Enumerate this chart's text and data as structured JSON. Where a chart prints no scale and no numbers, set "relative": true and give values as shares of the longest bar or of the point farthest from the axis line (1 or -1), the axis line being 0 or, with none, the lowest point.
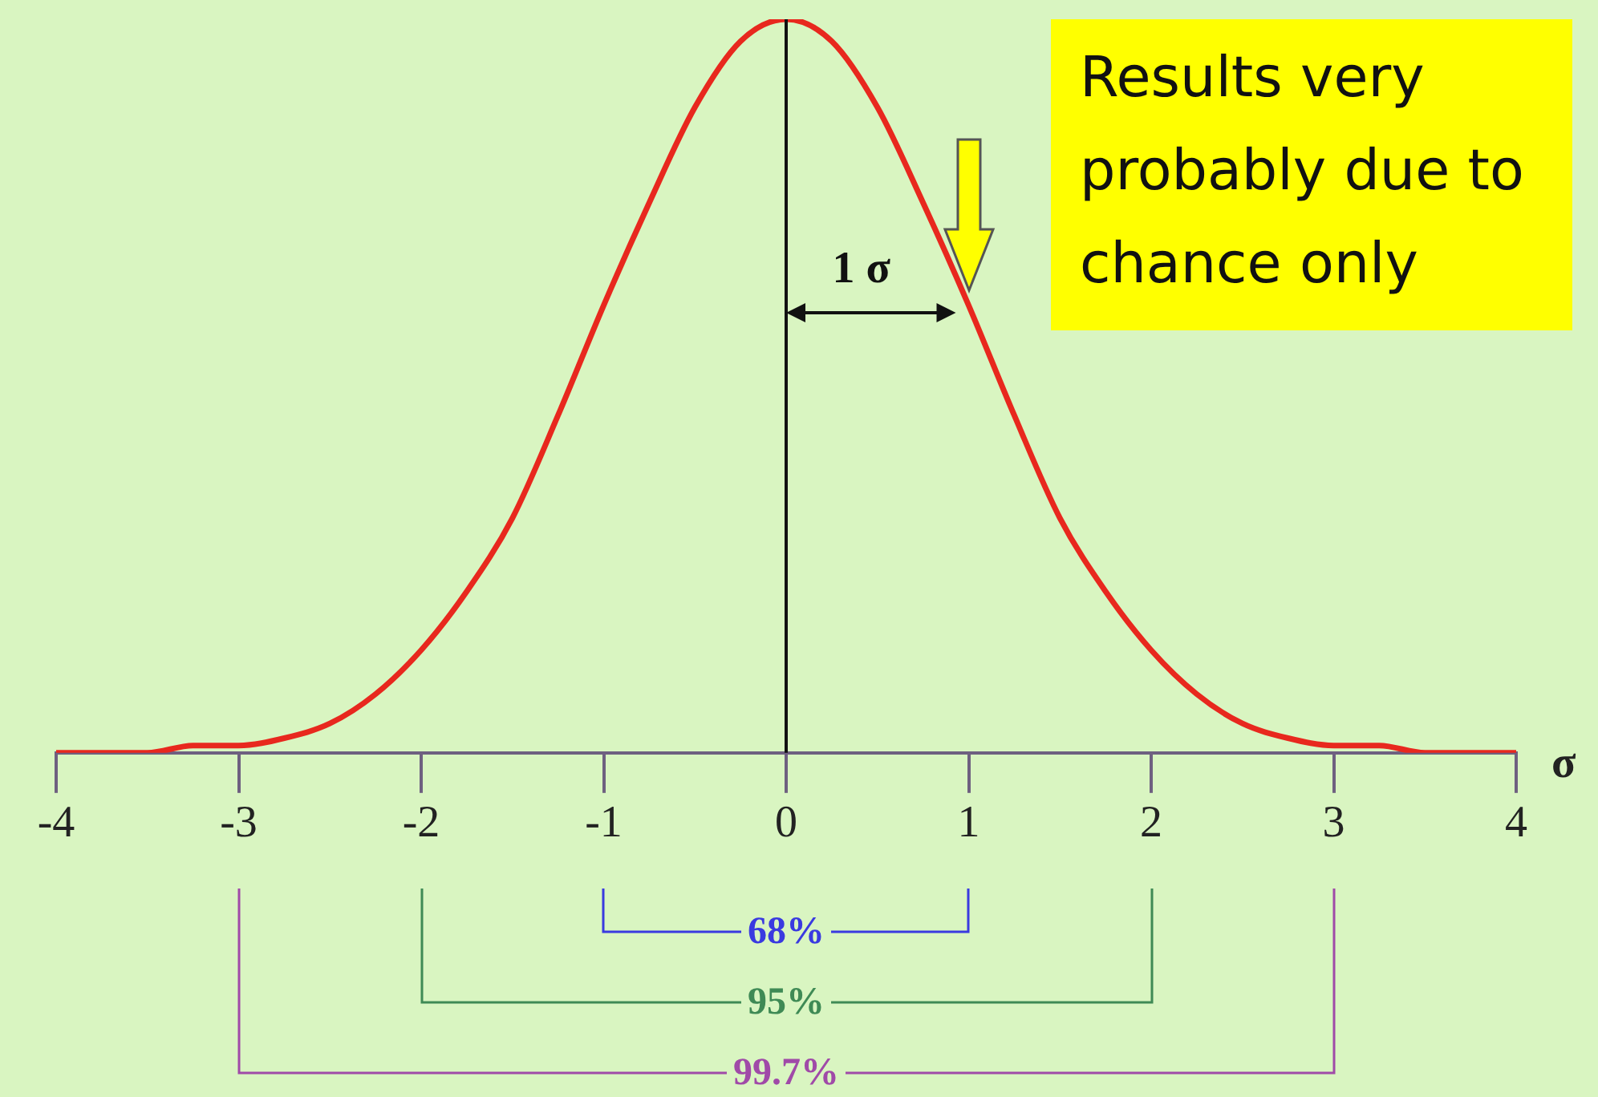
{
  "chart_data": {
    "type": "line",
    "relative": true,
    "xlabel": "σ",
    "xlim": [
      -4,
      4
    ],
    "xticks": [
      -4,
      -3,
      -2,
      -1,
      0,
      1,
      2,
      3,
      4
    ],
    "marker": "none",
    "legend": false,
    "grid": false,
    "x": [
      -4,
      -3.75,
      -3.5,
      -3.25,
      -3,
      -2.75,
      -2.5,
      -2.25,
      -2,
      -1.75,
      -1.5,
      -1.25,
      -1,
      -0.75,
      -0.5,
      -0.25,
      0,
      0.25,
      0.5,
      0.75,
      1,
      1.25,
      1.5,
      1.75,
      2,
      2.25,
      2.5,
      2.75,
      3,
      3.25,
      3.5,
      3.75,
      4
    ],
    "series": [
      {
        "color": "#e8281e",
        "values": [
          0,
          0,
          0,
          0.01,
          0.01,
          0.02,
          0.04,
          0.08,
          0.14,
          0.22,
          0.32,
          0.46,
          0.61,
          0.75,
          0.88,
          0.97,
          1,
          0.97,
          0.88,
          0.75,
          0.61,
          0.46,
          0.32,
          0.22,
          0.14,
          0.08,
          0.04,
          0.02,
          0.01,
          0.01,
          0,
          0,
          0
        ]
      }
    ],
    "ref_lines": [
      {
        "axis": "x",
        "value": 0,
        "color": "#111111"
      }
    ],
    "annotations": [
      {
        "text": "1 σ",
        "x": 1,
        "y": 0.6
      },
      "Results very probably due to chance only",
      "68%",
      "95%",
      "99.7%"
    ]
  }
}
